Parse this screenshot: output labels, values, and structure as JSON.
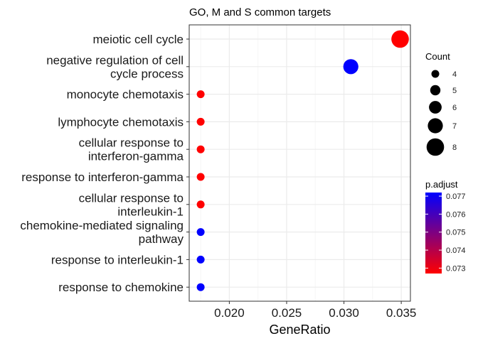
{
  "chart_data": {
    "type": "scatter",
    "title": "GO, M and S common targets",
    "xlabel": "GeneRatio",
    "ylabel": "",
    "xlim": [
      0.0165,
      0.0358
    ],
    "xticks": [
      0.02,
      0.025,
      0.03,
      0.035
    ],
    "xtick_labels": [
      "0.020",
      "0.025",
      "0.030",
      "0.035"
    ],
    "grid": true,
    "categories": [
      "meiotic cell cycle",
      "negative regulation of cell\ncycle process",
      "monocyte chemotaxis",
      "lymphocyte chemotaxis",
      "cellular response to\ninterferon-gamma",
      "response to interferon-gamma",
      "cellular response to\ninterleukin-1",
      "chemokine-mediated signaling\npathway",
      "response to interleukin-1",
      "response to chemokine"
    ],
    "points": [
      {
        "term": "meiotic cell cycle",
        "gene_ratio": 0.0349,
        "count": 8,
        "p_adjust": 0.0727
      },
      {
        "term": "negative regulation of cell cycle process",
        "gene_ratio": 0.0306,
        "count": 7,
        "p_adjust": 0.0772
      },
      {
        "term": "monocyte chemotaxis",
        "gene_ratio": 0.0175,
        "count": 4,
        "p_adjust": 0.0727
      },
      {
        "term": "lymphocyte chemotaxis",
        "gene_ratio": 0.0175,
        "count": 4,
        "p_adjust": 0.0727
      },
      {
        "term": "cellular response to interferon-gamma",
        "gene_ratio": 0.0175,
        "count": 4,
        "p_adjust": 0.0727
      },
      {
        "term": "response to interferon-gamma",
        "gene_ratio": 0.0175,
        "count": 4,
        "p_adjust": 0.0727
      },
      {
        "term": "cellular response to interleukin-1",
        "gene_ratio": 0.0175,
        "count": 4,
        "p_adjust": 0.0727
      },
      {
        "term": "chemokine-mediated signaling pathway",
        "gene_ratio": 0.0175,
        "count": 4,
        "p_adjust": 0.0772
      },
      {
        "term": "response to interleukin-1",
        "gene_ratio": 0.0175,
        "count": 4,
        "p_adjust": 0.0772
      },
      {
        "term": "response to chemokine",
        "gene_ratio": 0.0175,
        "count": 4,
        "p_adjust": 0.0772
      }
    ],
    "size_legend": {
      "title": "Count",
      "values": [
        4,
        5,
        6,
        7,
        8
      ],
      "labels": [
        "4",
        "5",
        "6",
        "7",
        "8"
      ]
    },
    "color_legend": {
      "title": "p.adjust",
      "range": [
        0.0727,
        0.0772
      ],
      "low_color": "#ff0000",
      "high_color": "#0000ff",
      "ticks": [
        0.073,
        0.074,
        0.075,
        0.076,
        0.077
      ],
      "tick_labels": [
        "0.073",
        "0.074",
        "0.075",
        "0.076",
        "0.077"
      ]
    },
    "colors": {
      "panel_background": "#ffffff",
      "grid_major": "#ebebeb",
      "grid_minor": "#f5f5f5",
      "panel_border": "#333333"
    }
  }
}
